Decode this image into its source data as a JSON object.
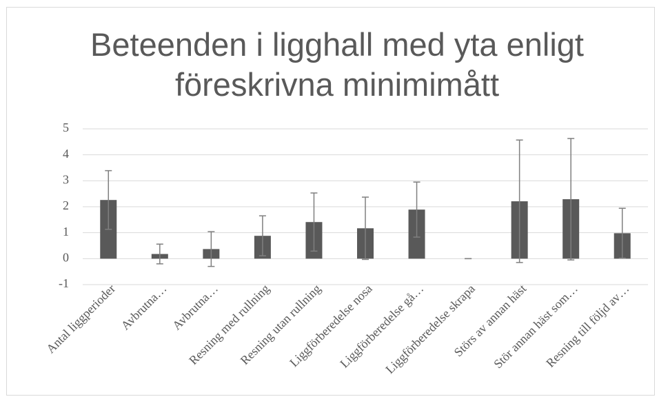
{
  "chart_data": {
    "type": "bar",
    "title": "Beteenden i ligghall med yta enligt föreskrivna minimimått",
    "categories": [
      "Antal liggperioder",
      "Avbrutna…",
      "Avbrutna…",
      "Resning med rullning",
      "Resning utan rullning",
      "Liggförberedelse nosa",
      "Liggförberedelse gå…",
      "Liggförberedelse skrapa",
      "Störs av annan häst",
      "Stör annan häst som…",
      "Resning till följd av…"
    ],
    "values": [
      2.26,
      0.18,
      0.37,
      0.88,
      1.41,
      1.17,
      1.89,
      0,
      2.21,
      2.29,
      0.98
    ],
    "errors": [
      1.13,
      0.38,
      0.67,
      0.77,
      1.12,
      1.2,
      1.06,
      0,
      2.36,
      2.34,
      0.96
    ],
    "color": "#595959",
    "error_color": "#7f7f7f",
    "ylim": [
      -1,
      5
    ],
    "yticks": [
      -1,
      0,
      1,
      2,
      3,
      4,
      5
    ],
    "grid": true
  }
}
